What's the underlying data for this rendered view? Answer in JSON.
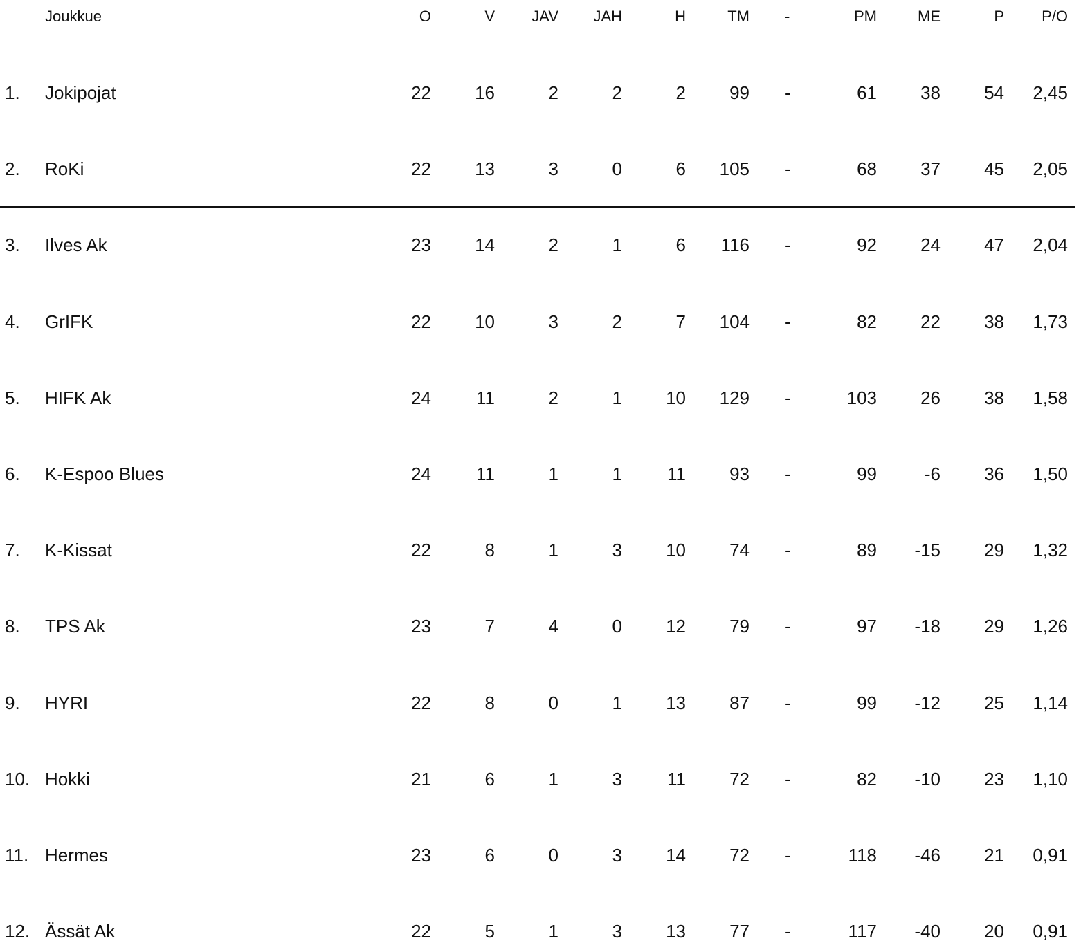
{
  "headers": {
    "rank": "",
    "team": "Joukkue",
    "o": "O",
    "v": "V",
    "jav": "JAV",
    "jah": "JAH",
    "h": "H",
    "tm": "TM",
    "dash": "-",
    "pm": "PM",
    "me": "ME",
    "p": "P",
    "po": "P/O"
  },
  "rows": [
    {
      "rank": "1.",
      "team": "Jokipojat",
      "o": "22",
      "v": "16",
      "jav": "2",
      "jah": "2",
      "h": "2",
      "tm": "99",
      "dash": "-",
      "pm": "61",
      "me": "38",
      "p": "54",
      "po": "2,45"
    },
    {
      "rank": "2.",
      "team": "RoKi",
      "o": "22",
      "v": "13",
      "jav": "3",
      "jah": "0",
      "h": "6",
      "tm": "105",
      "dash": "-",
      "pm": "68",
      "me": "37",
      "p": "45",
      "po": "2,05"
    },
    {
      "rank": "3.",
      "team": "Ilves Ak",
      "o": "23",
      "v": "14",
      "jav": "2",
      "jah": "1",
      "h": "6",
      "tm": "116",
      "dash": "-",
      "pm": "92",
      "me": "24",
      "p": "47",
      "po": "2,04"
    },
    {
      "rank": "4.",
      "team": "GrIFK",
      "o": "22",
      "v": "10",
      "jav": "3",
      "jah": "2",
      "h": "7",
      "tm": "104",
      "dash": "-",
      "pm": "82",
      "me": "22",
      "p": "38",
      "po": "1,73"
    },
    {
      "rank": "5.",
      "team": "HIFK Ak",
      "o": "24",
      "v": "11",
      "jav": "2",
      "jah": "1",
      "h": "10",
      "tm": "129",
      "dash": "-",
      "pm": "103",
      "me": "26",
      "p": "38",
      "po": "1,58"
    },
    {
      "rank": "6.",
      "team": "K-Espoo Blues",
      "o": "24",
      "v": "11",
      "jav": "1",
      "jah": "1",
      "h": "11",
      "tm": "93",
      "dash": "-",
      "pm": "99",
      "me": "-6",
      "p": "36",
      "po": "1,50"
    },
    {
      "rank": "7.",
      "team": "K-Kissat",
      "o": "22",
      "v": "8",
      "jav": "1",
      "jah": "3",
      "h": "10",
      "tm": "74",
      "dash": "-",
      "pm": "89",
      "me": "-15",
      "p": "29",
      "po": "1,32"
    },
    {
      "rank": "8.",
      "team": "TPS Ak",
      "o": "23",
      "v": "7",
      "jav": "4",
      "jah": "0",
      "h": "12",
      "tm": "79",
      "dash": "-",
      "pm": "97",
      "me": "-18",
      "p": "29",
      "po": "1,26"
    },
    {
      "rank": "9.",
      "team": "HYRI",
      "o": "22",
      "v": "8",
      "jav": "0",
      "jah": "1",
      "h": "13",
      "tm": "87",
      "dash": "-",
      "pm": "99",
      "me": "-12",
      "p": "25",
      "po": "1,14"
    },
    {
      "rank": "10.",
      "team": "Hokki",
      "o": "21",
      "v": "6",
      "jav": "1",
      "jah": "3",
      "h": "11",
      "tm": "72",
      "dash": "-",
      "pm": "82",
      "me": "-10",
      "p": "23",
      "po": "1,10"
    },
    {
      "rank": "11.",
      "team": "Hermes",
      "o": "23",
      "v": "6",
      "jav": "0",
      "jah": "3",
      "h": "14",
      "tm": "72",
      "dash": "-",
      "pm": "118",
      "me": "-46",
      "p": "21",
      "po": "0,91"
    },
    {
      "rank": "12.",
      "team": "Ässät Ak",
      "o": "22",
      "v": "5",
      "jav": "1",
      "jah": "3",
      "h": "13",
      "tm": "77",
      "dash": "-",
      "pm": "117",
      "me": "-40",
      "p": "20",
      "po": "0,91"
    }
  ]
}
